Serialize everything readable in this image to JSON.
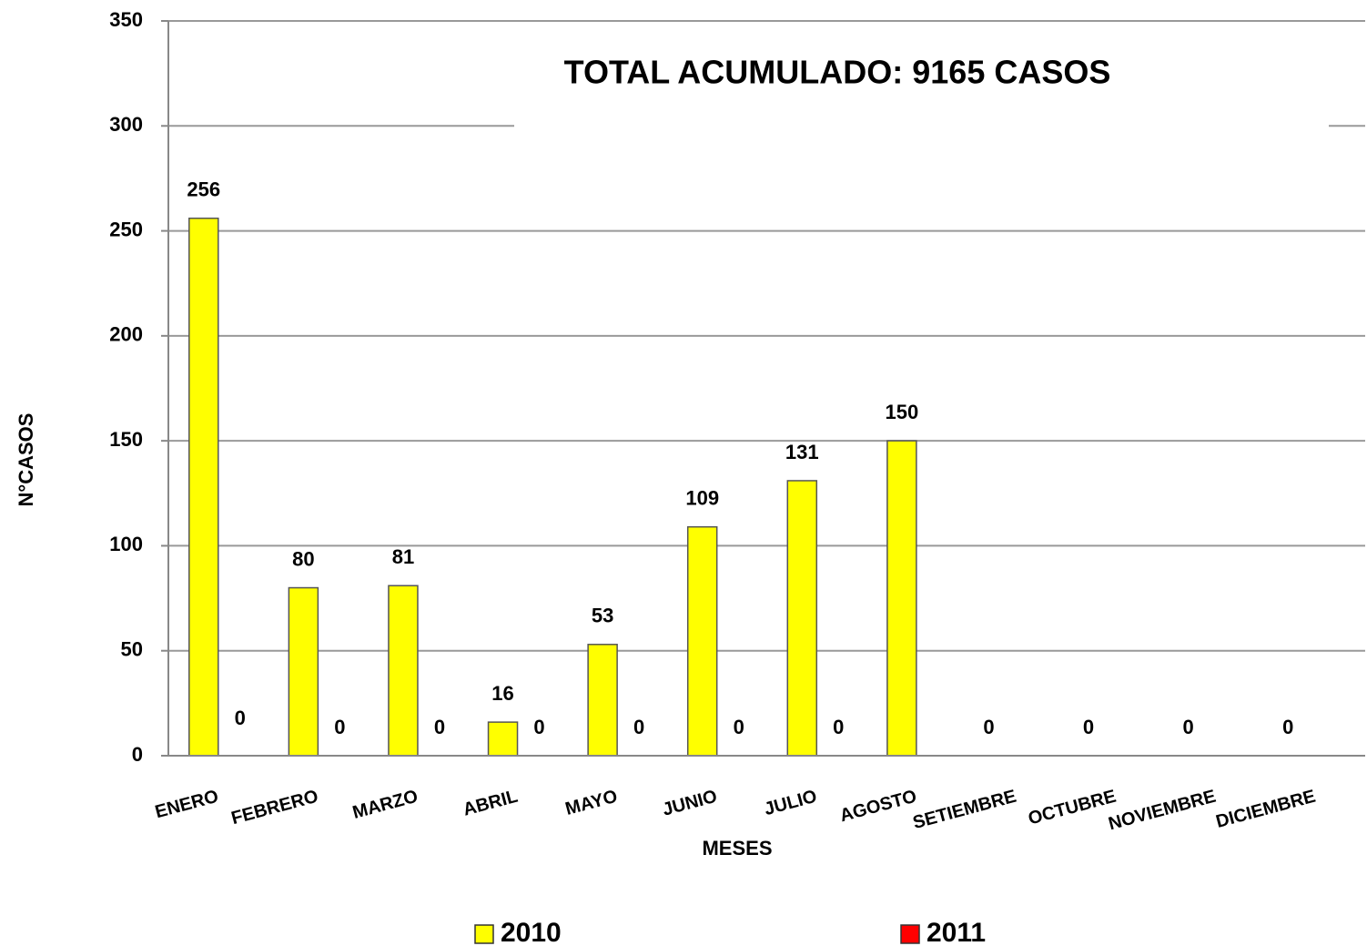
{
  "chart_data": {
    "type": "bar",
    "title": "TOTAL ACUMULADO: 9165 CASOS",
    "x_label": "MESES",
    "y_label": "N°CASOS",
    "categories": [
      "ENERO",
      "FEBRERO",
      "MARZO",
      "ABRIL",
      "MAYO",
      "JUNIO",
      "JULIO",
      "AGOSTO",
      "SETIEMBRE",
      "OCTUBRE",
      "NOVIEMBRE",
      "DICIEMBRE"
    ],
    "series": [
      {
        "name": "2010",
        "color": "#ffff00",
        "values": [
          256,
          80,
          81,
          16,
          53,
          109,
          131,
          150,
          0,
          0,
          0,
          0
        ]
      },
      {
        "name": "2011",
        "color": "#ff0000",
        "values": [
          0,
          0,
          0,
          0,
          0,
          0,
          0,
          null,
          null,
          null,
          null,
          null
        ]
      }
    ],
    "ylim": [
      0,
      350
    ],
    "yticks": [
      0,
      50,
      100,
      150,
      200,
      250,
      300,
      350
    ],
    "grid": true,
    "legend": "bottom"
  }
}
